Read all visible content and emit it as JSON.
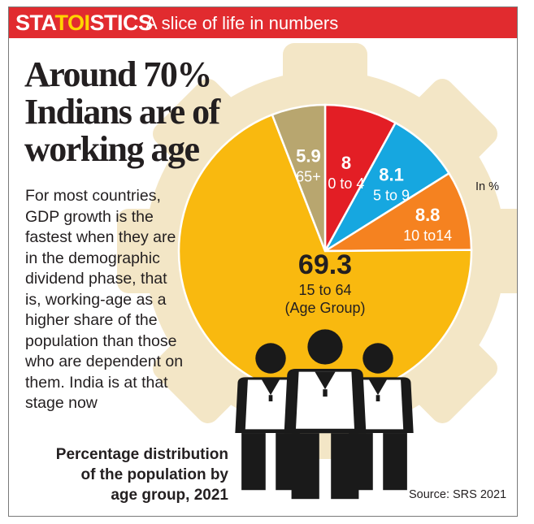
{
  "banner": {
    "brand_sta": "STA",
    "brand_toi": "TOI",
    "brand_stics": "STICS",
    "tagline": "A slice of life in numbers"
  },
  "headline": [
    "Around 70%",
    "Indians are of",
    "working age"
  ],
  "body": [
    "For most countries,",
    "GDP growth is the",
    "fastest when they are",
    "in the demographic",
    "dividend phase, that",
    "is, working-age as a",
    "higher share of the",
    "population than those",
    "who are dependent on",
    "them. India is at that",
    "stage now"
  ],
  "caption": [
    "Percentage distribution",
    "of the population by",
    "age group, 2021"
  ],
  "source": "Source: SRS 2021",
  "colors": {
    "banner": "#e12b2f",
    "brand_accent": "#ffd400",
    "gear": "#f3e6c6",
    "people": "#1a1a1a"
  },
  "chart_data": {
    "type": "pie",
    "title": "",
    "unit_label": "In %",
    "slices": [
      {
        "value": 8.0,
        "value_label": "8",
        "label": "0 to 4",
        "color": "#e31e25"
      },
      {
        "value": 8.1,
        "value_label": "8.1",
        "label": "5 to 9",
        "color": "#16a7e0"
      },
      {
        "value": 8.8,
        "value_label": "8.8",
        "label": "10 to14",
        "color": "#f58220"
      },
      {
        "value": 69.3,
        "value_label": "69.3",
        "label": "15 to 64",
        "sublabel": "(Age Group)",
        "color": "#f9b90f"
      },
      {
        "value": 5.9,
        "value_label": "5.9",
        "label": "65+",
        "color": "#b8a66f"
      }
    ]
  }
}
